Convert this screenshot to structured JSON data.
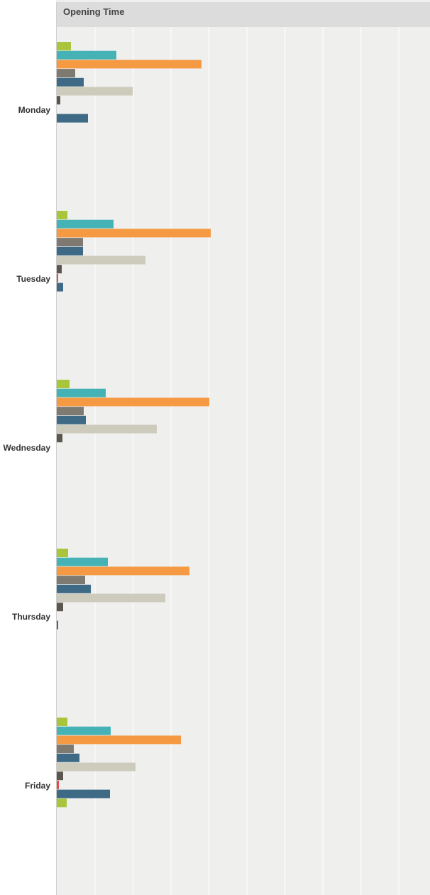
{
  "chart_data": {
    "type": "bar",
    "orientation": "horizontal",
    "title": "Opening Time",
    "categories": [
      "Monday",
      "Tuesday",
      "Wednesday",
      "Thursday",
      "Friday"
    ],
    "grid": true,
    "series": [
      {
        "color": "#a8c53c",
        "values": [
          20,
          15,
          18,
          16,
          15
        ]
      },
      {
        "color": "#45b3b6",
        "values": [
          84,
          80,
          69,
          72,
          76
        ]
      },
      {
        "color": "#f59a42",
        "values": [
          204,
          217,
          215,
          187,
          175
        ]
      },
      {
        "color": "#7e7a72",
        "values": [
          26,
          37,
          38,
          40,
          24
        ]
      },
      {
        "color": "#3e6a86",
        "values": [
          38,
          37,
          41,
          48,
          32
        ]
      },
      {
        "color": "#cdcbbc",
        "values": [
          107,
          125,
          141,
          153,
          111
        ]
      },
      {
        "color": "#5b5750",
        "values": [
          5,
          7,
          8,
          9,
          9
        ]
      },
      {
        "color": "#e04e4e",
        "values": [
          0,
          2,
          0,
          0,
          3
        ]
      },
      {
        "color": "#3e6a86",
        "values": [
          44,
          9,
          0,
          2,
          75
        ]
      },
      {
        "color": "#a8c53c",
        "values": [
          0,
          0,
          0,
          0,
          14
        ]
      }
    ]
  }
}
